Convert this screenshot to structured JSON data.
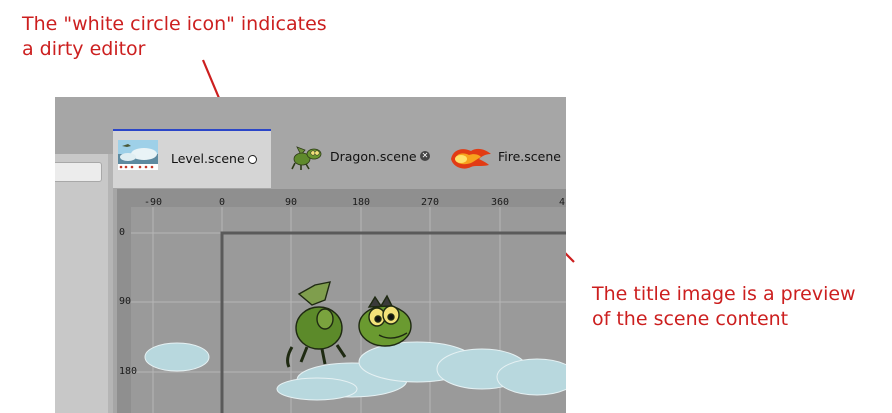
{
  "annotations": {
    "top": [
      "The \"white circle icon\" indicates",
      "a dirty editor"
    ],
    "right": [
      "The title image is a preview",
      "of the scene content"
    ]
  },
  "colors": {
    "annotation": "#cc1f1f",
    "active_tab_accent": "#2b46c8"
  },
  "tabs": [
    {
      "label": "Level.scene",
      "state_icon": "white-circle-icon",
      "active": true
    },
    {
      "label": "Dragon.scene",
      "state_icon": "close-icon",
      "active": false
    },
    {
      "label": "Fire.scene",
      "state_icon": "",
      "active": false
    }
  ],
  "close_glyph": "✕",
  "ruler": {
    "x_ticks": [
      "-90",
      "0",
      "90",
      "180",
      "270",
      "360",
      "4"
    ],
    "y_ticks": [
      "0",
      "90",
      "180"
    ]
  }
}
